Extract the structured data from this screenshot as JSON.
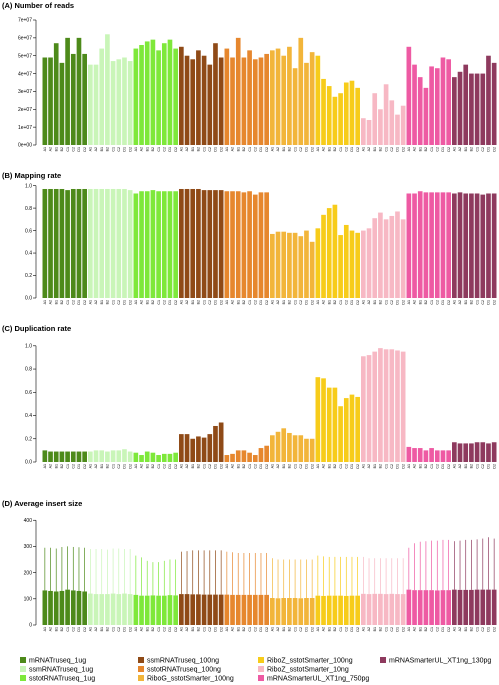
{
  "groups": [
    {
      "name": "mRNATruseq_1ug",
      "color": "#4d8a1a"
    },
    {
      "name": "ssmRNATruseq_1ug",
      "color": "#c9f5b8"
    },
    {
      "name": "sstotRNATruseq_1ug",
      "color": "#7ee83a"
    },
    {
      "name": "ssmRNATruseq_100ng",
      "color": "#8f4a17"
    },
    {
      "name": "sstotRNATruseq_100ng",
      "color": "#e6872e"
    },
    {
      "name": "RiboG_sstotSmarter_100ng",
      "color": "#f2b53a"
    },
    {
      "name": "RiboZ_sstotSmarter_100ng",
      "color": "#f7cc1a"
    },
    {
      "name": "RiboZ_sstotSmarter_10ng",
      "color": "#f7b8c4"
    },
    {
      "name": "mRNASmarterUL_XT1ng_750pg",
      "color": "#ee5aa3"
    },
    {
      "name": "mRNASmarterUL_XT1ng_130pg",
      "color": "#8e3a5e"
    }
  ],
  "legend_labels": [
    "mRNATruseq_1ug",
    "ssmRNATruseq_1ug",
    "sstotRNATruseq_1ug",
    "ssmRNATruseq_100ng",
    "sstotRNATruseq_100ng",
    "RiboG_sstotSmarter_100ng",
    "RiboZ_sstotSmarter_100ng",
    "RiboZ_sstotSmarter_10ng",
    "mRNASmarterUL_XT1ng_750pg",
    "mRNASmarterUL_XT1ng_130pg"
  ],
  "sample_labels": [
    "A1",
    "A2",
    "B1",
    "B2",
    "C1",
    "C2",
    "D1",
    "D2"
  ],
  "chart_data": [
    {
      "type": "bar",
      "title": "(A) Number of reads",
      "ylim": [
        0,
        70000000
      ],
      "yticks": [
        0,
        10000000,
        20000000,
        30000000,
        40000000,
        50000000,
        60000000,
        70000000
      ],
      "ytick_labels": [
        "0e+00",
        "1e+07",
        "2e+07",
        "3e+07",
        "4e+07",
        "5e+07",
        "6e+07",
        "7e+07"
      ],
      "series": [
        {
          "name": "mRNATruseq_1ug",
          "values": [
            49000000,
            49000000,
            57000000,
            46000000,
            60000000,
            51000000,
            60000000,
            51000000
          ]
        },
        {
          "name": "ssmRNATruseq_1ug",
          "values": [
            45000000,
            45000000,
            54000000,
            62000000,
            47000000,
            48000000,
            49000000,
            47000000
          ]
        },
        {
          "name": "sstotRNATruseq_1ug",
          "values": [
            54000000,
            56000000,
            58000000,
            59000000,
            53000000,
            57000000,
            59000000,
            54000000
          ]
        },
        {
          "name": "ssmRNATruseq_100ng",
          "values": [
            55000000,
            50000000,
            48000000,
            53000000,
            50000000,
            45000000,
            57000000,
            49000000
          ]
        },
        {
          "name": "sstotRNATruseq_100ng",
          "values": [
            54000000,
            49000000,
            60000000,
            49000000,
            53000000,
            48000000,
            49000000,
            51000000
          ]
        },
        {
          "name": "RiboG_sstotSmarter_100ng",
          "values": [
            53000000,
            54000000,
            50000000,
            55000000,
            43000000,
            60000000,
            46000000,
            52000000
          ]
        },
        {
          "name": "RiboZ_sstotSmarter_100ng",
          "values": [
            50000000,
            37000000,
            33000000,
            27000000,
            29000000,
            35000000,
            36000000,
            32000000
          ]
        },
        {
          "name": "RiboZ_sstotSmarter_10ng",
          "values": [
            15000000,
            14000000,
            29000000,
            20000000,
            34000000,
            25000000,
            17000000,
            22000000
          ]
        },
        {
          "name": "mRNASmarterUL_XT1ng_750pg",
          "values": [
            55000000,
            45000000,
            38000000,
            32000000,
            44000000,
            43000000,
            49000000,
            48000000
          ]
        },
        {
          "name": "mRNASmarterUL_XT1ng_130pg",
          "values": [
            38000000,
            41000000,
            45000000,
            40000000,
            40000000,
            40000000,
            50000000,
            46000000
          ]
        }
      ]
    },
    {
      "type": "bar",
      "title": "(B) Mapping rate",
      "ylim": [
        0,
        1.05
      ],
      "yticks": [
        0,
        0.2,
        0.4,
        0.6,
        0.8,
        1.0
      ],
      "ytick_labels": [
        "0.0",
        "0.2",
        "0.4",
        "0.6",
        "0.8",
        "1.0"
      ],
      "series": [
        {
          "name": "mRNATruseq_1ug",
          "values": [
            0.97,
            0.97,
            0.97,
            0.97,
            0.96,
            0.97,
            0.97,
            0.97
          ]
        },
        {
          "name": "ssmRNATruseq_1ug",
          "values": [
            0.97,
            0.97,
            0.97,
            0.97,
            0.97,
            0.97,
            0.97,
            0.96
          ]
        },
        {
          "name": "sstotRNATruseq_1ug",
          "values": [
            0.93,
            0.95,
            0.95,
            0.96,
            0.95,
            0.95,
            0.95,
            0.95
          ]
        },
        {
          "name": "ssmRNATruseq_100ng",
          "values": [
            0.97,
            0.97,
            0.97,
            0.97,
            0.96,
            0.96,
            0.96,
            0.96
          ]
        },
        {
          "name": "sstotRNATruseq_100ng",
          "values": [
            0.95,
            0.95,
            0.95,
            0.94,
            0.95,
            0.92,
            0.94,
            0.94
          ]
        },
        {
          "name": "RiboG_sstotSmarter_100ng",
          "values": [
            0.57,
            0.59,
            0.59,
            0.58,
            0.58,
            0.55,
            0.6,
            0.5
          ]
        },
        {
          "name": "RiboZ_sstotSmarter_100ng",
          "values": [
            0.62,
            0.74,
            0.8,
            0.83,
            0.56,
            0.65,
            0.6,
            0.58
          ]
        },
        {
          "name": "RiboZ_sstotSmarter_10ng",
          "values": [
            0.6,
            0.62,
            0.71,
            0.76,
            0.7,
            0.73,
            0.77,
            0.7
          ]
        },
        {
          "name": "mRNASmarterUL_XT1ng_750pg",
          "values": [
            0.93,
            0.93,
            0.95,
            0.94,
            0.94,
            0.94,
            0.94,
            0.94
          ]
        },
        {
          "name": "mRNASmarterUL_XT1ng_130pg",
          "values": [
            0.93,
            0.94,
            0.93,
            0.93,
            0.93,
            0.92,
            0.93,
            0.93
          ]
        }
      ]
    },
    {
      "type": "bar",
      "title": "(C) Duplication rate",
      "ylim": [
        0,
        1.05
      ],
      "yticks": [
        0,
        0.2,
        0.4,
        0.6,
        0.8,
        1.0
      ],
      "ytick_labels": [
        "0.0",
        "0.2",
        "0.4",
        "0.6",
        "0.8",
        "1.0"
      ],
      "series": [
        {
          "name": "mRNATruseq_1ug",
          "values": [
            0.1,
            0.09,
            0.09,
            0.09,
            0.09,
            0.09,
            0.09,
            0.09
          ]
        },
        {
          "name": "ssmRNATruseq_1ug",
          "values": [
            0.09,
            0.1,
            0.1,
            0.09,
            0.1,
            0.1,
            0.11,
            0.09
          ]
        },
        {
          "name": "sstotRNATruseq_1ug",
          "values": [
            0.08,
            0.06,
            0.09,
            0.08,
            0.06,
            0.07,
            0.07,
            0.08
          ]
        },
        {
          "name": "ssmRNATruseq_100ng",
          "values": [
            0.24,
            0.24,
            0.2,
            0.22,
            0.21,
            0.24,
            0.31,
            0.34
          ]
        },
        {
          "name": "sstotRNATruseq_100ng",
          "values": [
            0.06,
            0.07,
            0.1,
            0.1,
            0.08,
            0.06,
            0.12,
            0.14
          ]
        },
        {
          "name": "RiboG_sstotSmarter_100ng",
          "values": [
            0.23,
            0.26,
            0.29,
            0.25,
            0.23,
            0.23,
            0.2,
            0.2
          ]
        },
        {
          "name": "RiboZ_sstotSmarter_100ng",
          "values": [
            0.73,
            0.72,
            0.64,
            0.64,
            0.48,
            0.55,
            0.58,
            0.56
          ]
        },
        {
          "name": "RiboZ_sstotSmarter_10ng",
          "values": [
            0.91,
            0.92,
            0.95,
            0.98,
            0.97,
            0.97,
            0.96,
            0.95
          ]
        },
        {
          "name": "mRNASmarterUL_XT1ng_750pg",
          "values": [
            0.13,
            0.12,
            0.12,
            0.1,
            0.12,
            0.1,
            0.1,
            0.1
          ]
        },
        {
          "name": "mRNASmarterUL_XT1ng_130pg",
          "values": [
            0.17,
            0.16,
            0.16,
            0.16,
            0.17,
            0.17,
            0.16,
            0.17
          ]
        }
      ]
    },
    {
      "type": "bar",
      "title": "(D) Average insert size",
      "ylim": [
        0,
        420
      ],
      "yticks": [
        0,
        100,
        200,
        300,
        400
      ],
      "ytick_labels": [
        "0",
        "100",
        "200",
        "300",
        "400"
      ],
      "series": [
        {
          "name": "mRNATruseq_1ug",
          "values": [
            132,
            130,
            128,
            130,
            135,
            132,
            130,
            128
          ],
          "errors_upper": [
            295,
            295,
            292,
            298,
            300,
            298,
            297,
            295
          ]
        },
        {
          "name": "ssmRNATruseq_1ug",
          "values": [
            120,
            118,
            118,
            118,
            120,
            118,
            120,
            118
          ],
          "errors_upper": [
            290,
            290,
            290,
            288,
            292,
            292,
            290,
            290
          ]
        },
        {
          "name": "sstotRNATruseq_1ug",
          "values": [
            115,
            112,
            112,
            113,
            112,
            112,
            114,
            113
          ],
          "errors_upper": [
            265,
            258,
            245,
            240,
            240,
            245,
            250,
            250
          ]
        },
        {
          "name": "ssmRNATruseq_100ng",
          "values": [
            118,
            118,
            117,
            117,
            116,
            116,
            116,
            116
          ],
          "errors_upper": [
            280,
            282,
            285,
            285,
            285,
            285,
            285,
            285
          ]
        },
        {
          "name": "sstotRNATruseq_100ng",
          "values": [
            116,
            115,
            115,
            115,
            115,
            115,
            115,
            115
          ],
          "errors_upper": [
            280,
            278,
            275,
            275,
            275,
            275,
            275,
            275
          ]
        },
        {
          "name": "RiboG_sstotSmarter_100ng",
          "values": [
            103,
            102,
            103,
            103,
            103,
            102,
            103,
            103
          ],
          "errors_upper": [
            255,
            250,
            250,
            250,
            250,
            250,
            250,
            250
          ]
        },
        {
          "name": "RiboZ_sstotSmarter_100ng",
          "values": [
            112,
            111,
            112,
            112,
            112,
            111,
            112,
            112
          ],
          "errors_upper": [
            265,
            262,
            260,
            260,
            260,
            260,
            260,
            260
          ]
        },
        {
          "name": "RiboZ_sstotSmarter_10ng",
          "values": [
            119,
            118,
            119,
            119,
            118,
            119,
            118,
            118
          ],
          "errors_upper": [
            260,
            255,
            255,
            255,
            255,
            255,
            255,
            255
          ]
        },
        {
          "name": "mRNASmarterUL_XT1ng_750pg",
          "values": [
            135,
            133,
            133,
            133,
            133,
            132,
            133,
            133
          ],
          "errors_upper": [
            295,
            312,
            318,
            320,
            322,
            322,
            325,
            325
          ]
        },
        {
          "name": "mRNASmarterUL_XT1ng_130pg",
          "values": [
            135,
            134,
            134,
            134,
            135,
            135,
            135,
            135
          ],
          "errors_upper": [
            320,
            322,
            325,
            325,
            327,
            330,
            335,
            330
          ]
        }
      ]
    }
  ]
}
